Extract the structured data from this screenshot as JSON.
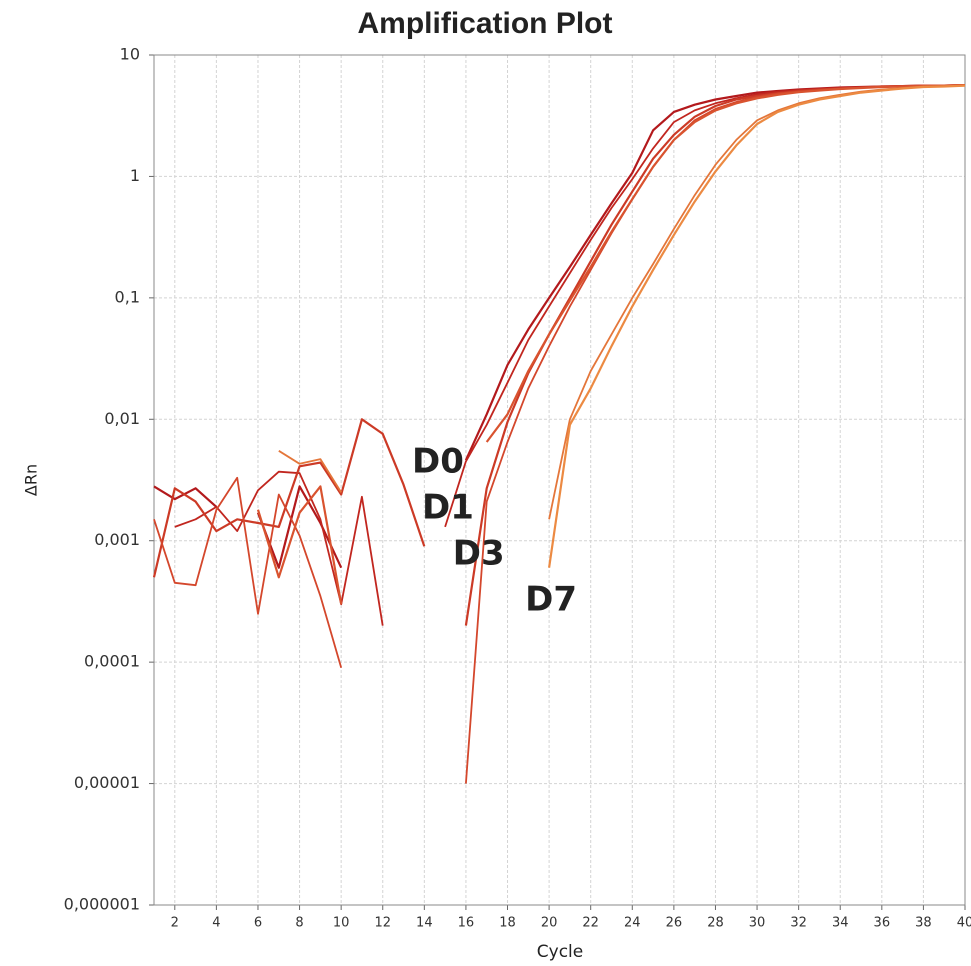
{
  "chart_data": {
    "type": "line",
    "title": "Amplification Plot",
    "x_label": "Cycle",
    "y_label": "ΔRn",
    "log_y": true,
    "grid": true,
    "xlim": [
      1,
      40
    ],
    "xticks": [
      2,
      4,
      6,
      8,
      10,
      12,
      14,
      16,
      18,
      20,
      22,
      24,
      26,
      28,
      30,
      32,
      34,
      36,
      38,
      40
    ],
    "ylim": [
      1e-06,
      10
    ],
    "yticks": [
      {
        "value": 1e-06,
        "label": "0,000001"
      },
      {
        "value": 1e-05,
        "label": "0,00001"
      },
      {
        "value": 0.0001,
        "label": "0,0001"
      },
      {
        "value": 0.001,
        "label": "0,001"
      },
      {
        "value": 0.01,
        "label": "0,01"
      },
      {
        "value": 0.1,
        "label": "0,1"
      },
      1,
      10
    ],
    "x": [
      1,
      2,
      3,
      4,
      5,
      6,
      7,
      8,
      9,
      10,
      11,
      12,
      13,
      14,
      15,
      16,
      17,
      18,
      19,
      20,
      21,
      22,
      23,
      24,
      25,
      26,
      27,
      28,
      29,
      30,
      31,
      32,
      33,
      34,
      35,
      36,
      37,
      38,
      39,
      40
    ],
    "series": [
      {
        "name": "D0",
        "color": "#b3191c",
        "values": [
          0.0028,
          0.0022,
          0.0027,
          0.0019,
          null,
          0.0017,
          0.0006,
          0.0028,
          0.0014,
          0.0006,
          null,
          null,
          null,
          null,
          null,
          0.0046,
          0.011,
          0.028,
          0.055,
          0.1,
          0.18,
          0.33,
          0.6,
          1.07,
          2.4,
          3.4,
          3.9,
          4.3,
          4.6,
          4.9,
          5.05,
          5.2,
          5.3,
          5.4,
          5.45,
          5.5,
          5.55,
          5.6,
          5.6,
          5.65
        ]
      },
      {
        "color": "#c1261f",
        "values": [
          null,
          0.0013,
          0.0015,
          0.0019,
          0.0012,
          0.0026,
          0.0037,
          0.0036,
          0.0015,
          0.0003,
          0.0023,
          0.0002,
          null,
          null,
          0.0013,
          0.0045,
          0.009,
          0.02,
          0.045,
          0.085,
          0.16,
          0.3,
          0.55,
          0.95,
          1.7,
          2.8,
          3.5,
          4.0,
          4.4,
          4.75,
          5.0,
          5.15,
          5.25,
          5.35,
          5.4,
          5.5,
          5.55,
          5.6,
          5.6,
          5.65
        ]
      },
      {
        "name": "D1",
        "color": "#cc3a26",
        "values": [
          0.0005,
          0.0027,
          0.0021,
          0.0012,
          0.0015,
          0.0014,
          0.0013,
          0.0041,
          0.0044,
          0.0024,
          0.01,
          0.0076,
          0.0029,
          0.0009,
          null,
          0.0002,
          0.0027,
          0.0095,
          0.024,
          0.05,
          0.1,
          0.2,
          0.4,
          0.75,
          1.4,
          2.2,
          3.1,
          3.8,
          4.3,
          4.6,
          4.85,
          5.05,
          5.2,
          5.3,
          5.4,
          5.5,
          5.55,
          5.6,
          5.6,
          5.65
        ]
      },
      {
        "color": "#d4472c",
        "values": [
          0.0015,
          0.00045,
          0.00043,
          0.0018,
          0.0033,
          0.00025,
          0.0024,
          0.0011,
          0.00035,
          9e-05,
          null,
          null,
          null,
          null,
          null,
          1e-05,
          0.0021,
          0.0065,
          0.018,
          0.04,
          0.085,
          0.17,
          0.34,
          0.65,
          1.2,
          2.0,
          2.9,
          3.6,
          4.1,
          4.5,
          4.8,
          5.0,
          5.15,
          5.3,
          5.4,
          5.45,
          5.5,
          5.6,
          5.6,
          5.65
        ]
      },
      {
        "name": "D3",
        "color": "#d9532f",
        "values": [
          null,
          null,
          null,
          null,
          null,
          0.0018,
          0.0005,
          0.0017,
          0.0028,
          0.0003,
          null,
          null,
          null,
          null,
          null,
          null,
          0.0065,
          0.011,
          0.025,
          0.05,
          0.095,
          0.18,
          0.35,
          0.65,
          1.2,
          2.0,
          2.8,
          3.5,
          4.0,
          4.4,
          4.7,
          4.95,
          5.1,
          5.25,
          5.35,
          5.45,
          5.5,
          5.55,
          5.6,
          5.65
        ]
      },
      {
        "name": "D7",
        "color": "#e4763a",
        "values": [
          null,
          null,
          null,
          null,
          null,
          null,
          0.0055,
          0.0043,
          0.0047,
          0.0025,
          null,
          null,
          null,
          null,
          null,
          null,
          null,
          null,
          null,
          0.0015,
          0.01,
          0.025,
          0.05,
          0.1,
          0.19,
          0.37,
          0.7,
          1.25,
          2.0,
          2.9,
          3.5,
          4.0,
          4.4,
          4.7,
          5.0,
          5.2,
          5.35,
          5.5,
          5.55,
          5.6
        ]
      },
      {
        "color": "#ec8a42",
        "values": [
          null,
          null,
          null,
          null,
          null,
          null,
          null,
          null,
          null,
          null,
          null,
          null,
          null,
          null,
          null,
          null,
          null,
          null,
          null,
          0.0006,
          0.009,
          0.018,
          0.04,
          0.085,
          0.17,
          0.33,
          0.62,
          1.1,
          1.8,
          2.7,
          3.4,
          3.9,
          4.3,
          4.6,
          4.9,
          5.1,
          5.3,
          5.45,
          5.5,
          5.6
        ]
      }
    ]
  }
}
